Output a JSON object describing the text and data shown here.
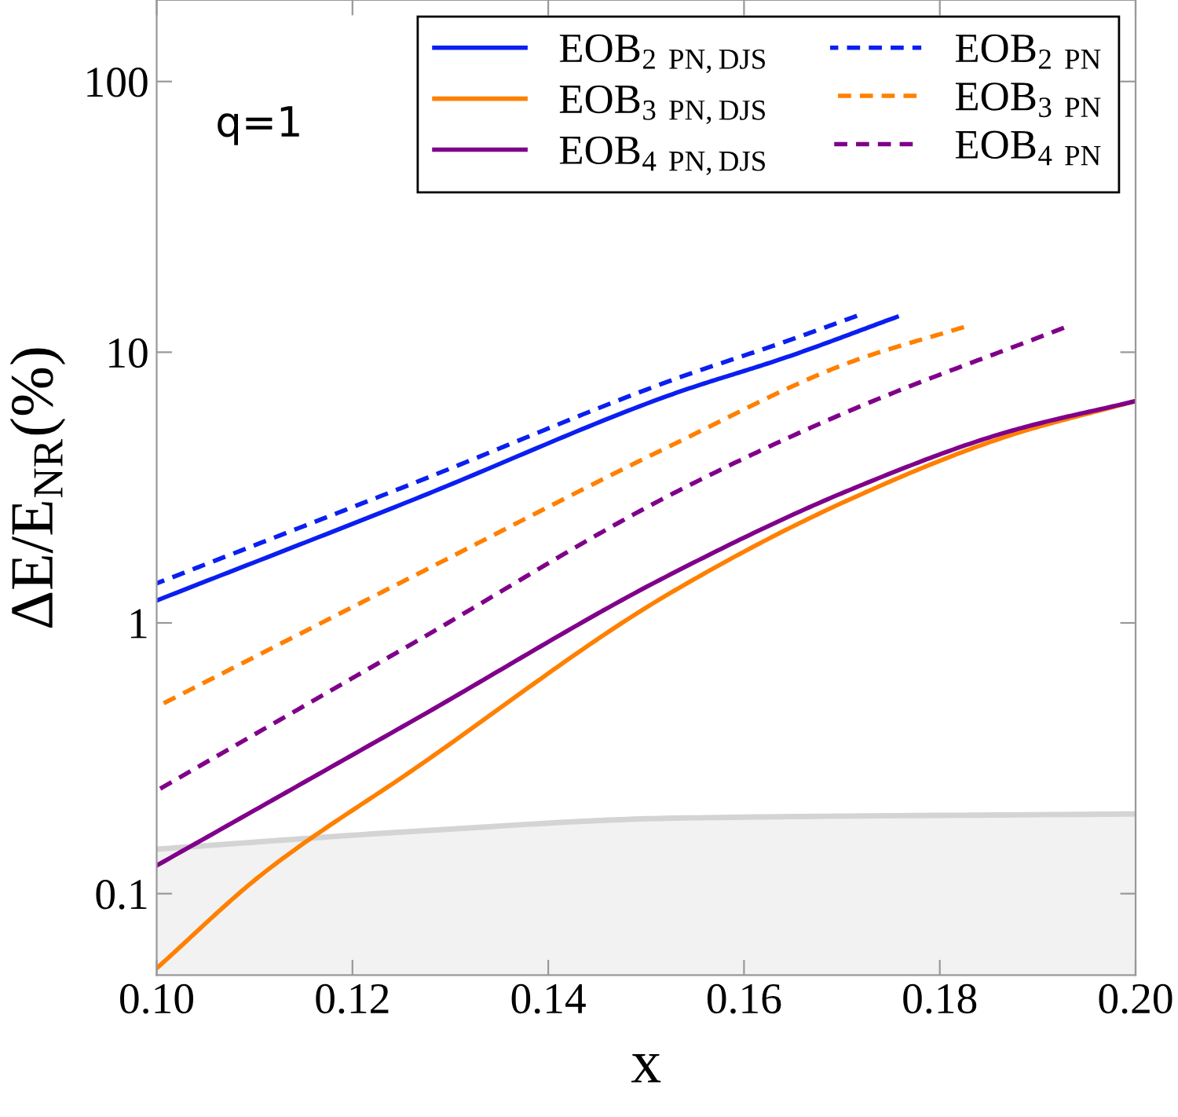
{
  "chart_data": {
    "type": "line",
    "xlabel": "x",
    "ylabel": "ΔE/E$_{NR}$(%)",
    "annotations": [
      "q=1"
    ],
    "log": "y",
    "xlim": [
      0.1,
      0.2
    ],
    "ylim": [
      0.05,
      200
    ],
    "xticks": [
      {
        "value": 0.1,
        "label": "0.10"
      },
      {
        "value": 0.12,
        "label": "0.12"
      },
      {
        "value": 0.14,
        "label": "0.14"
      },
      {
        "value": 0.16,
        "label": "0.16"
      },
      {
        "value": 0.18,
        "label": "0.18"
      },
      {
        "value": 0.2,
        "label": "0.20"
      }
    ],
    "yticks": [
      0.1,
      1,
      10,
      100
    ],
    "grid": false,
    "legend": "top right",
    "series": [
      {
        "name": "EOB$_{2 PN,DJS}$",
        "color": "#0a1ff0",
        "line_style": "solid",
        "x": [
          0.1,
          0.1264,
          0.1527,
          0.1644,
          0.1756
        ],
        "values": [
          1.21,
          2.87,
          7.0,
          9.6,
          13.5
        ]
      },
      {
        "name": "EOB$_{3 PN,DJS}$",
        "color": "#ff8000",
        "line_style": "solid",
        "x": [
          0.1,
          0.1109,
          0.1264,
          0.152,
          0.1709,
          0.1871,
          0.2
        ],
        "values": [
          0.053,
          0.119,
          0.29,
          1.26,
          2.87,
          4.92,
          6.6
        ]
      },
      {
        "name": "EOB$_{4 PN,DJS}$",
        "color": "#80008a",
        "line_style": "solid",
        "x": [
          0.1,
          0.1264,
          0.152,
          0.1709,
          0.1871,
          0.2
        ],
        "values": [
          0.127,
          0.44,
          1.48,
          3.11,
          5.1,
          6.6
        ]
      },
      {
        "name": "EOB$_{2 PN}$",
        "color": "#0a1ff0",
        "line_style": "dashed",
        "x": [
          0.1,
          0.1264,
          0.1527,
          0.1644,
          0.1722
        ],
        "values": [
          1.4,
          3.3,
          7.9,
          11.0,
          13.9
        ]
      },
      {
        "name": "EOB$_{3 PN}$",
        "color": "#ff8000",
        "line_style": "dashed",
        "x": [
          0.1,
          0.1264,
          0.1527,
          0.1709,
          0.1825
        ],
        "values": [
          0.49,
          1.5,
          4.55,
          9.2,
          12.4
        ]
      },
      {
        "name": "EOB$_{4 PN}$",
        "color": "#80008a",
        "line_style": "dashed",
        "x": [
          0.1,
          0.1264,
          0.1527,
          0.1709,
          0.1929
        ],
        "values": [
          0.24,
          0.85,
          3.0,
          6.1,
          12.4
        ]
      },
      {
        "type": "area",
        "color": "#d4d4d4",
        "x": [
          0.1,
          0.1264,
          0.1527,
          0.2
        ],
        "values": [
          0.146,
          0.17,
          0.19,
          0.197
        ]
      }
    ]
  }
}
